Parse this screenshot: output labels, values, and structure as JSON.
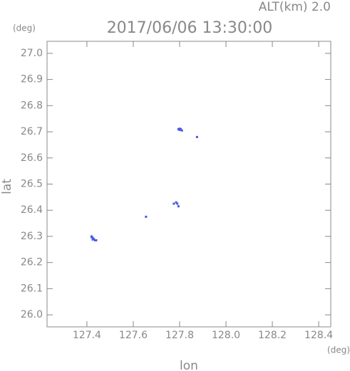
{
  "chart_data": {
    "type": "scatter",
    "title": "2017/06/06 13:30:00",
    "subtitle": "ALT(km) 2.0",
    "y_unit": "(deg)",
    "x_unit": "(deg)",
    "x_label": "lon",
    "y_label": "lat",
    "color": "#4a5ae8",
    "x": [
      127.42,
      127.425,
      127.43,
      127.435,
      127.425,
      127.44,
      127.42,
      127.655,
      127.775,
      127.785,
      127.79,
      127.795,
      127.795,
      127.8,
      127.805,
      127.81,
      127.8,
      127.875
    ],
    "y": [
      26.3,
      26.295,
      26.29,
      26.285,
      26.288,
      26.285,
      26.297,
      26.375,
      26.425,
      26.43,
      26.425,
      26.415,
      26.71,
      26.712,
      26.71,
      26.705,
      26.707,
      26.68
    ],
    "xlim": [
      127.228,
      128.452
    ],
    "ylim": [
      25.954,
      27.046
    ],
    "xticks": [
      127.4,
      127.6,
      127.8,
      {
        "value": 128,
        "label": "128.0"
      },
      128.2,
      128.4
    ],
    "yticks": [
      {
        "value": 26,
        "label": "26.0"
      },
      26.1,
      26.2,
      26.3,
      26.4,
      26.5,
      26.6,
      26.7,
      26.8,
      26.9,
      {
        "value": 27,
        "label": "27.0"
      }
    ]
  }
}
